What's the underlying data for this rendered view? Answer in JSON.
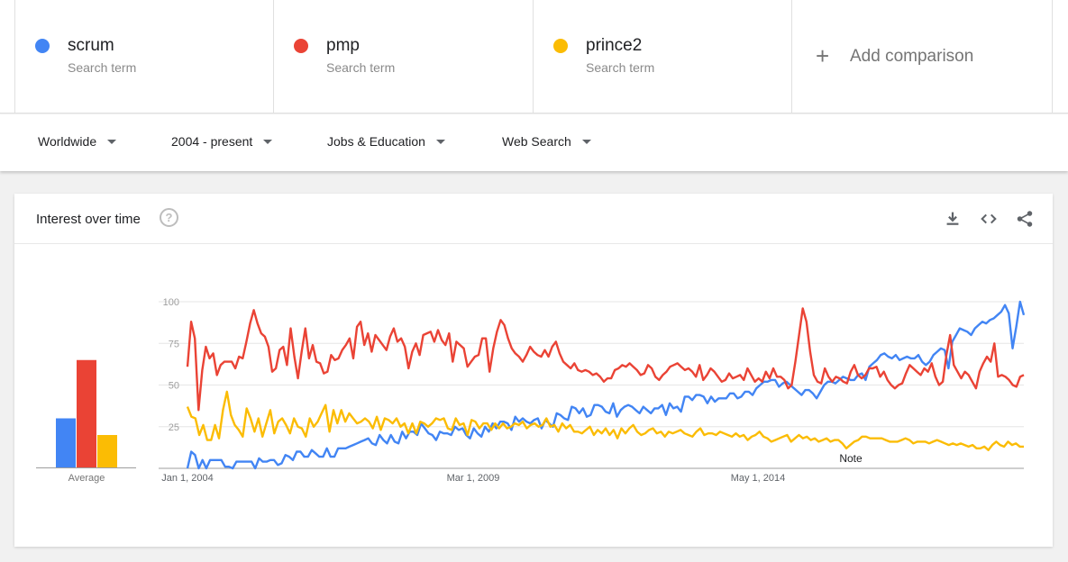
{
  "terms": [
    {
      "name": "scrum",
      "sub": "Search term",
      "color": "#4285f4"
    },
    {
      "name": "pmp",
      "sub": "Search term",
      "color": "#ea4335"
    },
    {
      "name": "prince2",
      "sub": "Search term",
      "color": "#fbbc04"
    }
  ],
  "add_comparison": "Add comparison",
  "filters": {
    "region": "Worldwide",
    "time": "2004 - present",
    "category": "Jobs & Education",
    "search_type": "Web Search"
  },
  "card": {
    "title": "Interest over time",
    "icons": [
      "help-icon",
      "download-icon",
      "embed-icon",
      "share-icon"
    ]
  },
  "chart_data": {
    "type": "line",
    "x_labels": [
      "Jan 1, 2004",
      "Mar 1, 2009",
      "May 1, 2014"
    ],
    "note_label": "Note",
    "ylim": [
      0,
      100
    ],
    "yticks": [
      "100",
      "75",
      "50",
      "25"
    ],
    "grid": true,
    "average": {
      "label": "Average",
      "values": {
        "scrum": 30,
        "pmp": 65,
        "prince2": 20
      }
    },
    "series": [
      {
        "name": "scrum",
        "color": "#4285f4",
        "values": [
          0,
          10,
          8,
          0,
          5,
          0,
          5,
          5,
          5,
          5,
          1,
          1,
          0,
          4,
          4,
          4,
          4,
          4,
          0,
          6,
          4,
          4,
          5,
          5,
          2,
          3,
          8,
          7,
          5,
          10,
          10,
          7,
          7,
          11,
          9,
          7,
          7,
          12,
          7,
          7,
          12,
          12,
          12,
          13,
          14,
          15,
          16,
          17,
          18,
          15,
          14,
          20,
          17,
          15,
          20,
          16,
          15,
          22,
          18,
          22,
          22,
          20,
          27,
          24,
          21,
          20,
          17,
          22,
          21,
          21,
          20,
          25,
          23,
          24,
          20,
          18,
          24,
          21,
          19,
          25,
          22,
          27,
          24,
          28,
          28,
          27,
          23,
          31,
          28,
          30,
          28,
          27,
          29,
          30,
          24,
          29,
          27,
          25,
          33,
          32,
          30,
          29,
          37,
          36,
          33,
          36,
          31,
          32,
          38,
          38,
          37,
          34,
          33,
          39,
          31,
          35,
          37,
          38,
          37,
          35,
          33,
          37,
          35,
          33,
          36,
          36,
          38,
          32,
          39,
          36,
          37,
          34,
          43,
          43,
          41,
          44,
          44,
          43,
          39,
          43,
          40,
          42,
          42,
          42,
          45,
          45,
          42,
          43,
          46,
          46,
          44,
          48,
          50,
          52,
          52,
          53,
          53,
          49,
          51,
          52,
          50,
          48,
          46,
          44,
          47,
          47,
          45,
          42,
          46,
          50,
          52,
          52,
          51,
          53,
          55,
          54,
          53,
          53,
          56,
          57,
          53,
          61,
          63,
          65,
          68,
          69,
          67,
          66,
          68,
          65,
          66,
          67,
          66,
          66,
          68,
          64,
          62,
          64,
          68,
          70,
          72,
          71,
          60,
          76,
          80,
          84,
          83,
          82,
          80,
          84,
          86,
          88,
          87,
          89,
          90,
          92,
          94,
          98,
          93,
          72,
          85,
          100,
          92
        ]
      },
      {
        "name": "pmp",
        "color": "#ea4335",
        "values": [
          61,
          88,
          78,
          35,
          59,
          73,
          66,
          69,
          56,
          62,
          64,
          64,
          64,
          60,
          67,
          66,
          76,
          87,
          95,
          87,
          81,
          79,
          73,
          58,
          60,
          71,
          73,
          62,
          84,
          67,
          54,
          70,
          84,
          66,
          74,
          64,
          63,
          57,
          58,
          68,
          65,
          66,
          71,
          74,
          78,
          66,
          85,
          88,
          74,
          81,
          70,
          80,
          77,
          74,
          71,
          79,
          84,
          76,
          78,
          73,
          60,
          70,
          75,
          68,
          80,
          81,
          82,
          76,
          83,
          77,
          74,
          81,
          64,
          76,
          74,
          72,
          61,
          64,
          67,
          68,
          78,
          78,
          58,
          72,
          82,
          89,
          86,
          78,
          72,
          69,
          67,
          64,
          68,
          73,
          70,
          68,
          67,
          71,
          67,
          73,
          76,
          69,
          64,
          62,
          60,
          63,
          59,
          58,
          59,
          58,
          56,
          57,
          55,
          52,
          54,
          54,
          59,
          60,
          62,
          61,
          63,
          61,
          59,
          56,
          57,
          62,
          60,
          55,
          53,
          56,
          58,
          61,
          62,
          63,
          61,
          59,
          60,
          58,
          55,
          62,
          53,
          56,
          60,
          58,
          55,
          52,
          53,
          57,
          54,
          55,
          56,
          53,
          60,
          56,
          52,
          54,
          52,
          58,
          54,
          60,
          55,
          55,
          53,
          48,
          50,
          64,
          80,
          96,
          88,
          70,
          56,
          52,
          51,
          60,
          55,
          52,
          55,
          54,
          52,
          51,
          58,
          62,
          56,
          54,
          56,
          60,
          60,
          61,
          55,
          58,
          53,
          50,
          48,
          50,
          51,
          57,
          62,
          60,
          58,
          56,
          60,
          58,
          63,
          55,
          50,
          52,
          68,
          80,
          62,
          58,
          54,
          58,
          56,
          52,
          48,
          58,
          63,
          67,
          64,
          75,
          55,
          56,
          55,
          53,
          50,
          49,
          55,
          56
        ]
      },
      {
        "name": "prince2",
        "color": "#fbbc04",
        "values": [
          37,
          31,
          30,
          20,
          26,
          17,
          17,
          26,
          18,
          35,
          46,
          32,
          26,
          23,
          19,
          36,
          30,
          22,
          30,
          19,
          27,
          35,
          21,
          28,
          30,
          26,
          21,
          30,
          25,
          24,
          19,
          30,
          25,
          28,
          33,
          38,
          22,
          35,
          27,
          35,
          28,
          33,
          30,
          27,
          28,
          30,
          28,
          24,
          31,
          23,
          30,
          29,
          27,
          30,
          25,
          27,
          21,
          27,
          21,
          28,
          27,
          25,
          27,
          30,
          29,
          30,
          24,
          23,
          30,
          26,
          27,
          20,
          29,
          28,
          24,
          27,
          27,
          23,
          27,
          24,
          27,
          24,
          25,
          27,
          26,
          28,
          24,
          26,
          27,
          25,
          26,
          30,
          25,
          26,
          22,
          27,
          24,
          26,
          22,
          22,
          21,
          23,
          25,
          20,
          23,
          21,
          24,
          20,
          23,
          18,
          24,
          21,
          24,
          26,
          22,
          20,
          21,
          23,
          24,
          21,
          22,
          19,
          22,
          21,
          22,
          23,
          21,
          20,
          19,
          22,
          24,
          20,
          21,
          21,
          20,
          22,
          21,
          20,
          19,
          21,
          19,
          20,
          17,
          19,
          20,
          22,
          19,
          18,
          16,
          17,
          18,
          19,
          20,
          16,
          18,
          20,
          18,
          19,
          17,
          18,
          16,
          17,
          18,
          16,
          17,
          17,
          15,
          12,
          14,
          16,
          17,
          19,
          19,
          18,
          18,
          18,
          18,
          17,
          16,
          16,
          16,
          17,
          18,
          17,
          15,
          16,
          16,
          16,
          15,
          16,
          17,
          16,
          15,
          14,
          15,
          14,
          15,
          14,
          13,
          14,
          12,
          12,
          13,
          11,
          14,
          16,
          14,
          13,
          16,
          14,
          15,
          13,
          13
        ]
      }
    ]
  }
}
